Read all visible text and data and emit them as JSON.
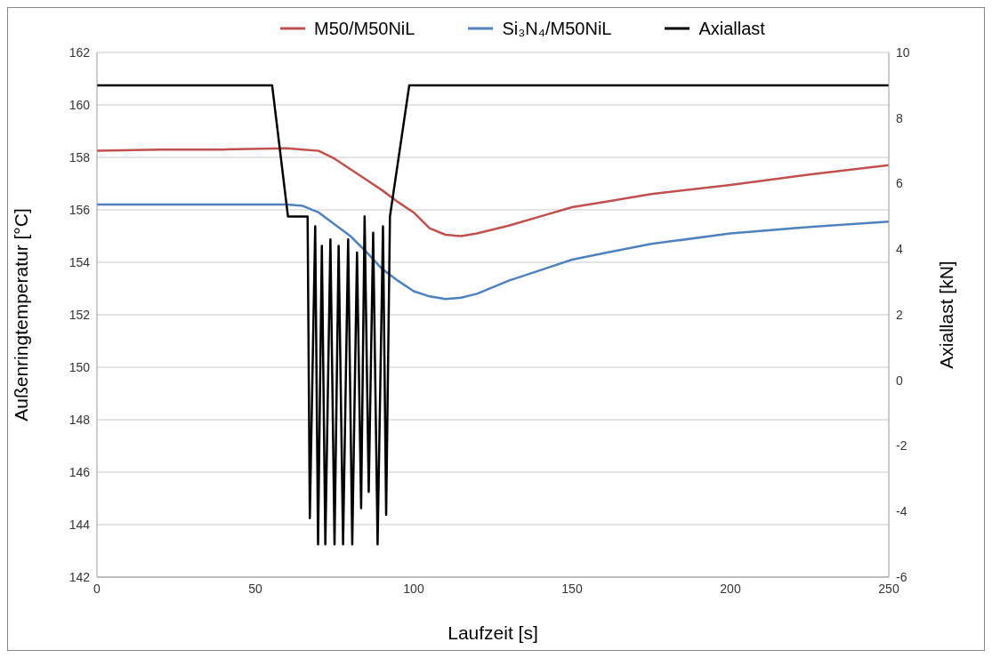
{
  "chart_data": {
    "type": "line",
    "xlabel": "Laufzeit [s]",
    "ylabel": "Außenringtemperatur  [°C]",
    "y2label": "Axiallast  [kN]",
    "xlim": [
      0,
      250
    ],
    "xticks": [
      0,
      50,
      100,
      150,
      200,
      250
    ],
    "ylim": [
      142,
      162
    ],
    "yticks": [
      142,
      144,
      146,
      148,
      150,
      152,
      154,
      156,
      158,
      160,
      162
    ],
    "y2lim": [
      -6,
      10
    ],
    "y2ticks": [
      -6,
      -4,
      -2,
      0,
      2,
      4,
      6,
      8,
      10
    ],
    "grid": "y",
    "legend": "top",
    "marker": "none",
    "line_style": "solid",
    "series": [
      {
        "name": "M50/M50NiL",
        "color": "#c0504d",
        "x": [
          0,
          20,
          40,
          60,
          65,
          70,
          75,
          80,
          85,
          90,
          95,
          100,
          105,
          110,
          115,
          120,
          130,
          140,
          150,
          160,
          175,
          200,
          225,
          250
        ],
        "values": [
          158.25,
          158.3,
          158.3,
          158.35,
          158.3,
          158.25,
          157.95,
          157.55,
          157.15,
          156.75,
          156.3,
          155.9,
          155.3,
          155.05,
          155.0,
          155.1,
          155.4,
          155.75,
          156.1,
          156.3,
          156.6,
          156.95,
          157.35,
          157.7
        ]
      },
      {
        "name": "Si₃N₄/M50NiL",
        "color": "#4f81bd",
        "x": [
          0,
          20,
          40,
          60,
          65,
          70,
          75,
          80,
          85,
          90,
          95,
          100,
          105,
          110,
          115,
          120,
          130,
          140,
          150,
          160,
          175,
          200,
          225,
          250
        ],
        "values": [
          156.2,
          156.2,
          156.2,
          156.2,
          156.15,
          155.9,
          155.45,
          155.0,
          154.4,
          153.75,
          153.3,
          152.9,
          152.7,
          152.6,
          152.65,
          152.8,
          153.3,
          153.7,
          154.1,
          154.35,
          154.7,
          155.1,
          155.35,
          155.55
        ]
      },
      {
        "name": "Axiallast",
        "color": "#000000",
        "axis": "y2",
        "x": [
          0,
          55.3,
          60.3,
          66.5,
          67.2,
          68.9,
          69.8,
          71,
          72.1,
          73.7,
          75,
          76.3,
          77.7,
          79.3,
          80.6,
          82.1,
          83.4,
          84.5,
          85.8,
          87.2,
          88.6,
          90.3,
          91.3,
          92.5,
          98.6,
          250
        ],
        "values": [
          9.0,
          9.0,
          5.0,
          5.0,
          -4.2,
          4.7,
          -5.0,
          4.1,
          -5.0,
          4.3,
          -5.0,
          4.1,
          -5.0,
          4.3,
          -5.0,
          3.9,
          -3.9,
          5.0,
          -3.4,
          4.5,
          -5.0,
          4.7,
          -4.1,
          5.0,
          9.0,
          9.0
        ]
      }
    ]
  }
}
